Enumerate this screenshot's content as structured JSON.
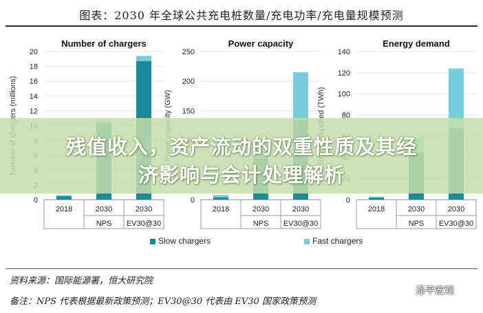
{
  "title": "图表：2030 年全球公共充电桩数量/充电功率/充电量规模预测",
  "banner": {
    "line1": "残值收入，资产流动的双重性质及其经",
    "line2": "济影响与会计处理解析"
  },
  "legend": {
    "slow": "Slow chargers",
    "fast": "Fast chargers"
  },
  "colors": {
    "slow": "#1a8a9c",
    "fast": "#76cde0",
    "grid": "#e2e2e2",
    "axis": "#888888",
    "banner": "#c4deaa"
  },
  "notes": {
    "source": "资料来源：国际能源署，恒大研究院",
    "remark": "备注：NPS 代表根据最新政策预测；EV30@30 代表由 EV30 国家政策预测"
  },
  "watermark": "泽平宏观",
  "chart_data": [
    {
      "type": "bar",
      "stacked": true,
      "title": "Number of chargers",
      "ylabel": "Number of chargers (millions)",
      "ylim": [
        0,
        20
      ],
      "yticks": [
        0,
        2,
        4,
        6,
        8,
        10,
        12,
        14,
        16,
        18,
        20
      ],
      "categories": [
        "2018",
        "2030",
        "2030"
      ],
      "subcategories": [
        "",
        "NPS",
        "EV30@30"
      ],
      "series": [
        {
          "name": "Slow chargers",
          "values": [
            0.5,
            10.3,
            18.7
          ]
        },
        {
          "name": "Fast chargers",
          "values": [
            0.1,
            0.4,
            0.7
          ]
        }
      ]
    },
    {
      "type": "bar",
      "stacked": true,
      "title": "Power capacity",
      "ylabel": "Power capacity (GW)",
      "ylim": [
        0,
        250
      ],
      "yticks": [
        0,
        50,
        100,
        150,
        200,
        250
      ],
      "categories": [
        "2018",
        "2030",
        "2030"
      ],
      "subcategories": [
        "",
        "NPS",
        "EV30@30"
      ],
      "series": [
        {
          "name": "Slow chargers",
          "values": [
            4,
            70,
            135
          ]
        },
        {
          "name": "Fast chargers",
          "values": [
            4,
            30,
            80
          ]
        }
      ]
    },
    {
      "type": "bar",
      "stacked": true,
      "title": "Energy demand",
      "ylabel": "Energy supplied (TWh)",
      "ylim": [
        0,
        140
      ],
      "yticks": [
        0,
        20,
        40,
        60,
        80,
        100,
        120,
        140
      ],
      "categories": [
        "2018",
        "2030",
        "2030"
      ],
      "subcategories": [
        "",
        "NPS",
        "EV30@30"
      ],
      "series": [
        {
          "name": "Slow chargers",
          "values": [
            2,
            45,
            68
          ]
        },
        {
          "name": "Fast chargers",
          "values": [
            1,
            14,
            56
          ]
        }
      ]
    }
  ]
}
